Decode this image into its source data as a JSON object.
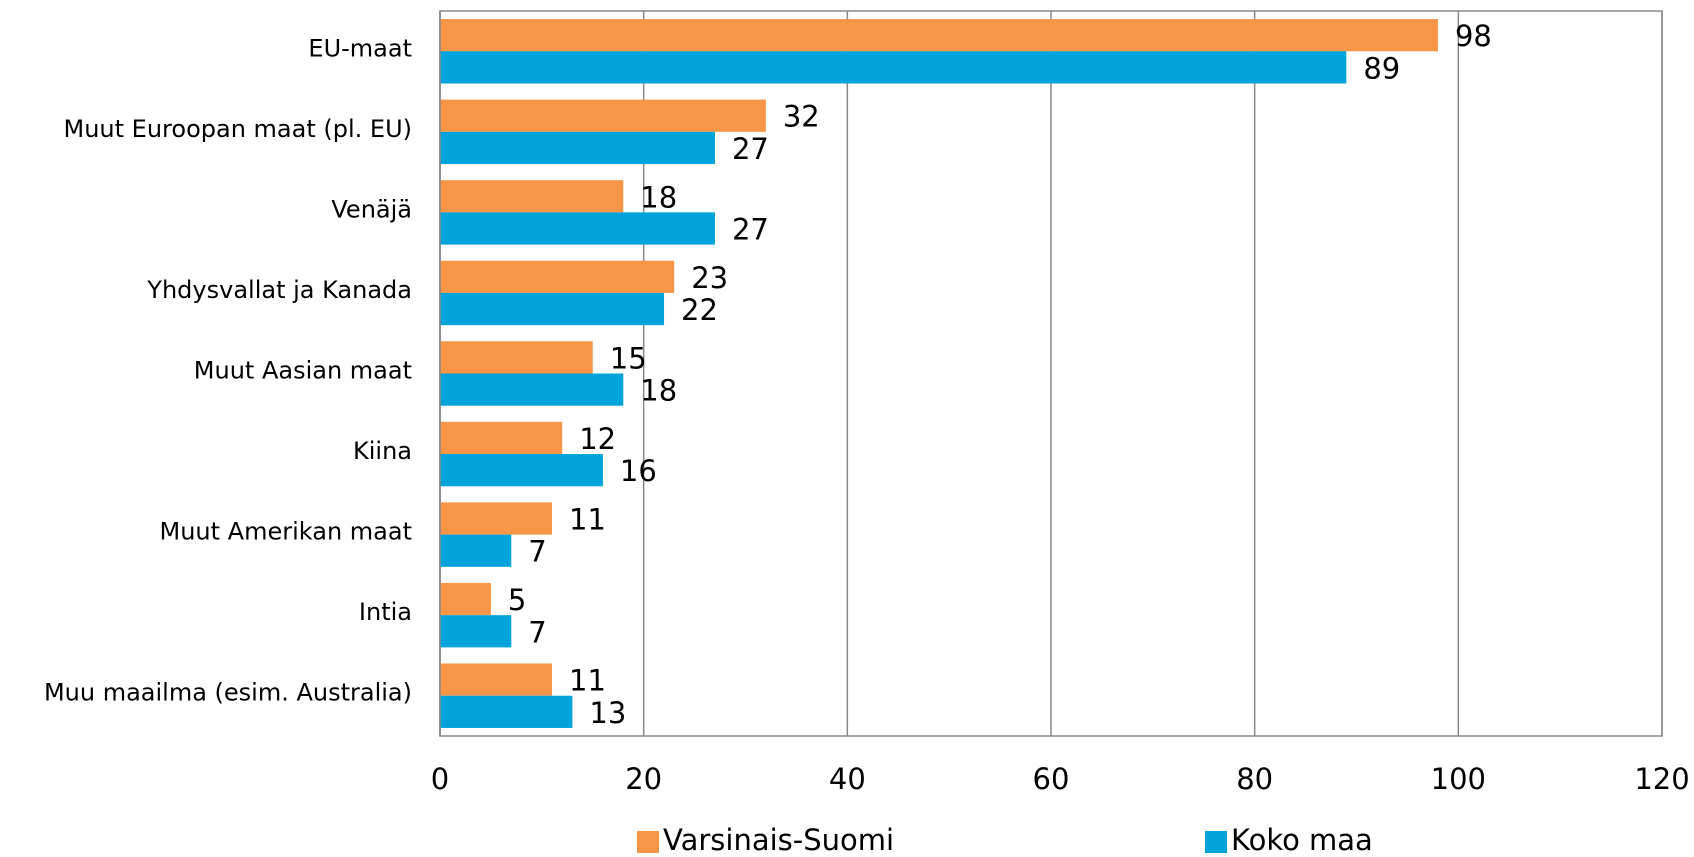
{
  "chart_data": {
    "type": "bar",
    "orientation": "horizontal",
    "categories": [
      "EU-maat",
      "Muut Euroopan maat (pl. EU)",
      "Venäjä",
      "Yhdysvallat ja Kanada",
      "Muut Aasian maat",
      "Kiina",
      "Muut Amerikan maat",
      "Intia",
      "Muu maailma (esim. Australia)"
    ],
    "series": [
      {
        "name": "Varsinais-Suomi",
        "color": "#f79646",
        "values": [
          98,
          32,
          18,
          23,
          15,
          12,
          11,
          5,
          11
        ]
      },
      {
        "name": "Koko maa",
        "color": "#00a3da",
        "values": [
          89,
          27,
          27,
          22,
          18,
          16,
          7,
          7,
          13
        ]
      }
    ],
    "xlim": [
      0,
      120
    ],
    "xticks": [
      0,
      20,
      40,
      60,
      80,
      100,
      120
    ],
    "grid": true,
    "legend": "bottom"
  }
}
